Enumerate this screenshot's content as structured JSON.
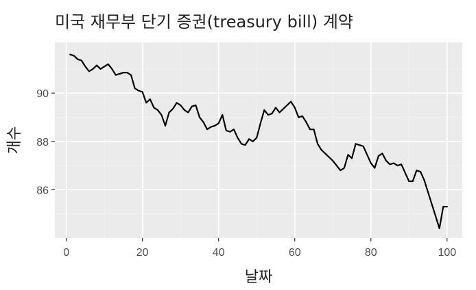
{
  "chart_data": {
    "type": "line",
    "title": "미국 재무부 단기 증권(treasury bill) 계약",
    "xlabel": "날짜",
    "ylabel": "개수",
    "xlim": [
      -3,
      104
    ],
    "ylim": [
      84.0,
      92.1
    ],
    "x_ticks": [
      0,
      20,
      40,
      60,
      80,
      100
    ],
    "y_ticks": [
      86,
      88,
      90
    ],
    "x_tick_labels": [
      "0",
      "20",
      "40",
      "60",
      "80",
      "100"
    ],
    "y_tick_labels": [
      "86",
      "88",
      "90"
    ],
    "grid": true,
    "panel_background": "#ebebeb",
    "line_color": "#000000",
    "series": [
      {
        "x": [
          1,
          2,
          3,
          4,
          5,
          6,
          7,
          8,
          9,
          10,
          11,
          12,
          13,
          14,
          15,
          16,
          17,
          18,
          19,
          20,
          21,
          22,
          23,
          24,
          25,
          26,
          27,
          28,
          29,
          30,
          31,
          32,
          33,
          34,
          35,
          36,
          37,
          38,
          39,
          40,
          41,
          42,
          43,
          44,
          45,
          46,
          47,
          48,
          49,
          50,
          51,
          52,
          53,
          54,
          55,
          56,
          57,
          58,
          59,
          60,
          61,
          62,
          63,
          64,
          65,
          66,
          67,
          68,
          69,
          70,
          71,
          72,
          73,
          74,
          75,
          76,
          77,
          78,
          79,
          80,
          81,
          82,
          83,
          84,
          85,
          86,
          87,
          88,
          89,
          90,
          91,
          92,
          93,
          94,
          95,
          96,
          97,
          98,
          99,
          100
        ],
        "y": [
          91.6,
          91.55,
          91.4,
          91.35,
          91.1,
          90.9,
          91.0,
          91.15,
          91.0,
          91.1,
          91.2,
          91.0,
          90.75,
          90.8,
          90.85,
          90.85,
          90.75,
          90.2,
          90.1,
          90.05,
          89.6,
          89.75,
          89.4,
          89.3,
          89.1,
          88.65,
          89.2,
          89.35,
          89.6,
          89.5,
          89.3,
          89.2,
          89.45,
          89.5,
          89.0,
          88.8,
          88.5,
          88.6,
          88.65,
          88.75,
          89.1,
          88.45,
          88.4,
          88.5,
          88.15,
          87.9,
          87.85,
          88.1,
          88.0,
          88.15,
          88.75,
          89.3,
          89.1,
          89.15,
          89.4,
          89.2,
          89.35,
          89.5,
          89.65,
          89.4,
          89.0,
          89.05,
          88.8,
          88.5,
          88.5,
          87.9,
          87.65,
          87.5,
          87.35,
          87.2,
          87.0,
          86.8,
          86.9,
          87.45,
          87.3,
          87.9,
          87.85,
          87.8,
          87.45,
          87.1,
          86.9,
          87.4,
          87.5,
          87.2,
          87.05,
          87.1,
          87.0,
          87.05,
          86.7,
          86.35,
          86.35,
          86.8,
          86.75,
          86.4,
          85.9,
          85.4,
          84.9,
          84.4,
          85.3,
          85.3
        ]
      }
    ]
  }
}
